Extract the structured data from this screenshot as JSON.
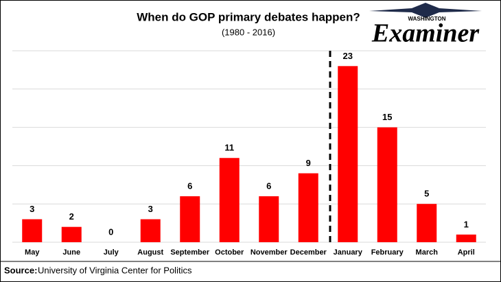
{
  "chart_data": {
    "type": "bar",
    "title": "When do GOP primary debates happen?",
    "subtitle": "(1980 - 2016)",
    "categories": [
      "May",
      "June",
      "July",
      "August",
      "September",
      "October",
      "November",
      "December",
      "January",
      "February",
      "March",
      "April"
    ],
    "values": [
      3,
      2,
      0,
      3,
      6,
      11,
      6,
      9,
      23,
      15,
      5,
      1
    ],
    "color": "#ff0000",
    "ylim": [
      0,
      25
    ],
    "yticks": [
      0,
      5,
      10,
      15,
      20,
      25
    ],
    "grid": true,
    "source_label": "Source:",
    "source": "University of Virginia Center for Politics",
    "logo": {
      "top": "WASHINGTON",
      "name": "Examiner"
    }
  }
}
